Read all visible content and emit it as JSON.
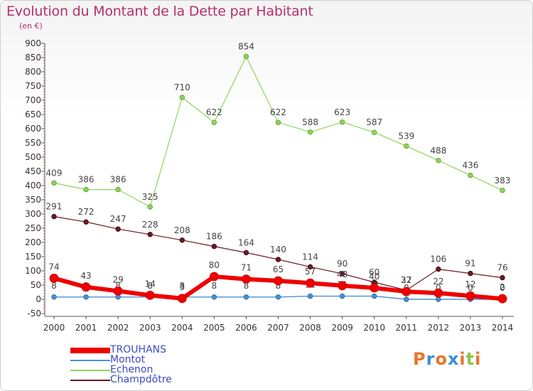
{
  "title": "Evolution du Montant de la Dette par Habitant",
  "subtitle": "(en €)",
  "logo": {
    "text": "Proxiti",
    "colors": [
      "#e9762b",
      "#3a8fd9",
      "#e9762b",
      "#3a8fd9",
      "#e9762b",
      "#8bc34a",
      "#e9762b"
    ]
  },
  "chart_data": {
    "type": "line",
    "x": [
      2000,
      2001,
      2002,
      2003,
      2004,
      2005,
      2006,
      2007,
      2008,
      2009,
      2010,
      2011,
      2012,
      2013,
      2014
    ],
    "ylim": [
      -50,
      900
    ],
    "yticks": [
      -50,
      0,
      50,
      100,
      150,
      200,
      250,
      300,
      350,
      400,
      450,
      500,
      550,
      600,
      650,
      700,
      750,
      800,
      850,
      900
    ],
    "grid": false,
    "legend_position": "bottom-left",
    "series": [
      {
        "name": "Echenon",
        "color": "#8fd45a",
        "values": [
          409,
          386,
          386,
          325,
          710,
          622,
          854,
          622,
          588,
          623,
          587,
          539,
          488,
          436,
          383
        ]
      },
      {
        "name": "Champdôtre",
        "color": "#6b1a23",
        "values": [
          291,
          272,
          247,
          228,
          208,
          186,
          164,
          140,
          114,
          90,
          60,
          32,
          106,
          91,
          76
        ]
      },
      {
        "name": "Montot",
        "color": "#4a90d2",
        "values": [
          8,
          8,
          8,
          8,
          8,
          8,
          8,
          8,
          11,
          11,
          11,
          0,
          0,
          0,
          0
        ]
      },
      {
        "name": "TROUHANS",
        "color": "#ee0000",
        "values": [
          74,
          43,
          29,
          14,
          3,
          80,
          71,
          65,
          57,
          48,
          40,
          27,
          22,
          12,
          2
        ]
      }
    ]
  }
}
